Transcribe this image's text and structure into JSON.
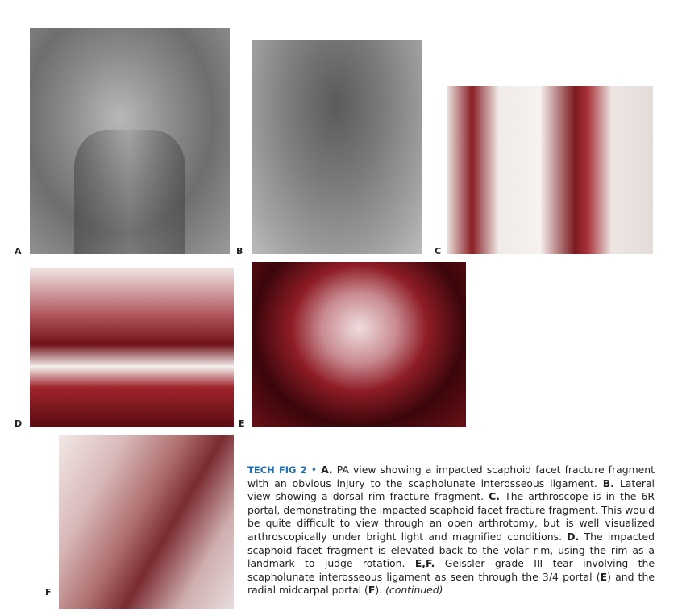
{
  "panels": [
    {
      "label": "A"
    },
    {
      "label": "B"
    },
    {
      "label": "C"
    },
    {
      "label": "D"
    },
    {
      "label": "E"
    },
    {
      "label": "F"
    }
  ],
  "caption": {
    "runs": [
      {
        "text": "TECH FIG 2",
        "style": "figlabel"
      },
      {
        "text": " • ",
        "style": "sep"
      },
      {
        "text": "A.",
        "style": "bold"
      },
      {
        "text": " PA view showing a impacted scaphoid facet fracture fragment with an obvious injury to the scapholunate interosseous ligament. ",
        "style": "normal"
      },
      {
        "text": "B.",
        "style": "bold"
      },
      {
        "text": " Lateral view showing a dorsal rim fracture fragment. ",
        "style": "normal"
      },
      {
        "text": "C.",
        "style": "bold"
      },
      {
        "text": " The arthroscope is in the 6R portal, demonstrating the impacted scaphoid facet fracture fragment. This would be quite difficult to view through an open arthrotomy, but is well visualized arthroscopically under bright light and magnified conditions. ",
        "style": "normal"
      },
      {
        "text": "D.",
        "style": "bold"
      },
      {
        "text": " The impacted scaphoid facet fragment is elevated back to the volar rim, using the rim as a landmark to judge rotation. ",
        "style": "normal"
      },
      {
        "text": "E,F.",
        "style": "bold"
      },
      {
        "text": " Geissler grade III tear involving the scapholunate interosseous ligament as seen through the 3/4 portal (",
        "style": "normal"
      },
      {
        "text": "E",
        "style": "bold"
      },
      {
        "text": ") and the radial midcarpal portal (",
        "style": "normal"
      },
      {
        "text": "F",
        "style": "bold"
      },
      {
        "text": "). ",
        "style": "normal"
      },
      {
        "text": "(continued)",
        "style": "italic"
      }
    ]
  }
}
